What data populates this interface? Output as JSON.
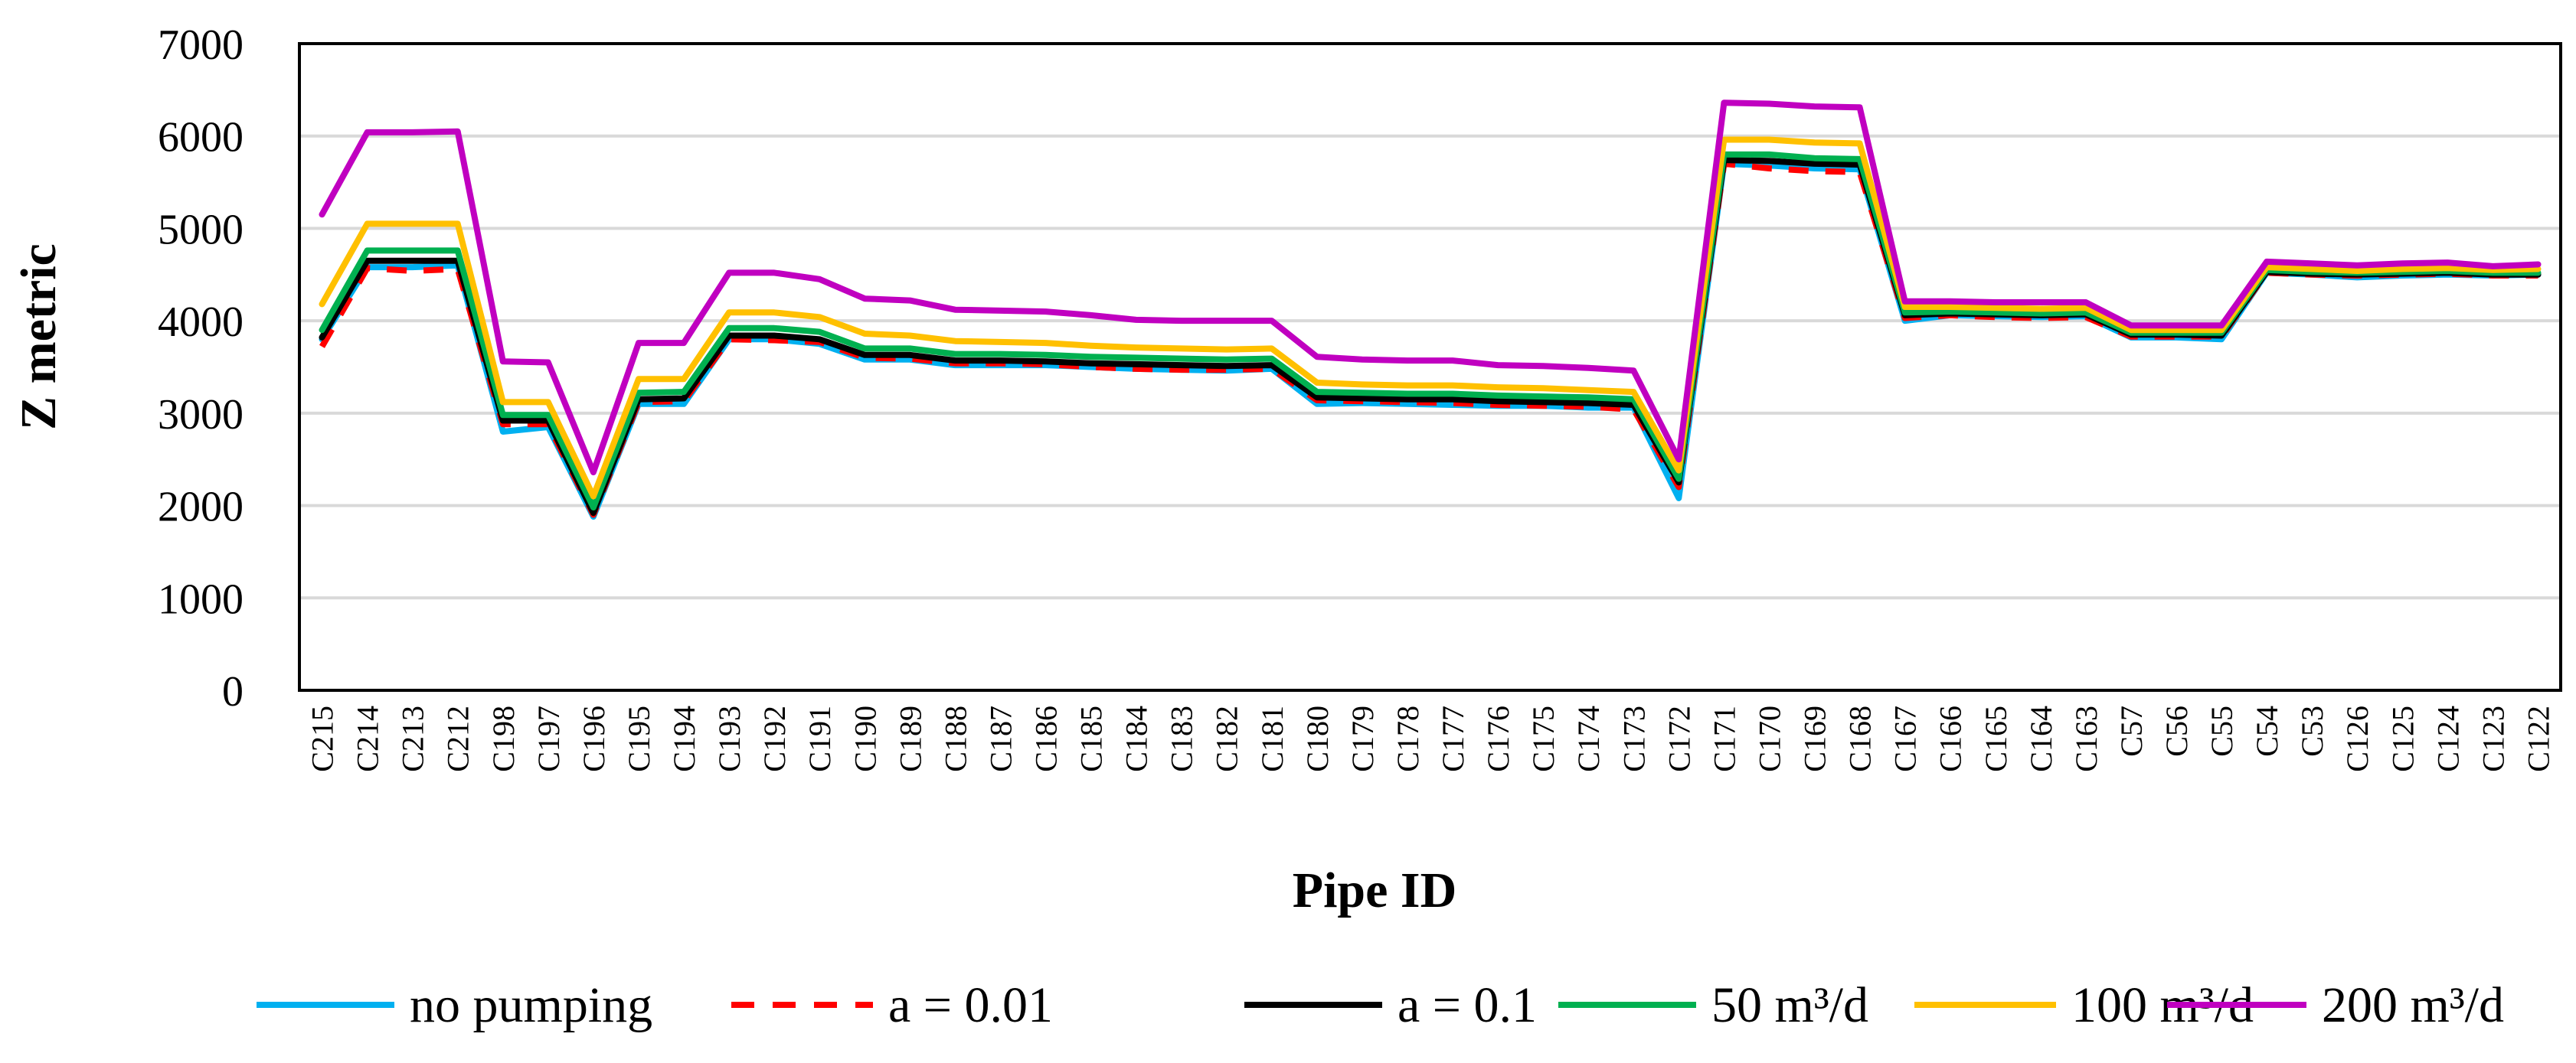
{
  "chart_data": {
    "type": "line",
    "title": "",
    "xlabel": "Pipe ID",
    "ylabel": "Z metric",
    "ylim": [
      0,
      7000
    ],
    "yticks": [
      0,
      1000,
      2000,
      3000,
      4000,
      5000,
      6000,
      7000
    ],
    "grid": true,
    "legend_position": "bottom",
    "categories": [
      "C215",
      "C214",
      "C213",
      "C212",
      "C198",
      "C197",
      "C196",
      "C195",
      "C194",
      "C193",
      "C192",
      "C191",
      "C190",
      "C189",
      "C188",
      "C187",
      "C186",
      "C185",
      "C184",
      "C183",
      "C182",
      "C181",
      "C180",
      "C179",
      "C178",
      "C177",
      "C176",
      "C175",
      "C174",
      "C173",
      "C172",
      "C171",
      "C170",
      "C169",
      "C168",
      "C167",
      "C166",
      "C165",
      "C164",
      "C163",
      "C57",
      "C56",
      "C55",
      "C54",
      "C53",
      "C126",
      "C125",
      "C124",
      "C123",
      "C122"
    ],
    "series": [
      {
        "name": "no pumping",
        "color": "#00B0F0",
        "dash": "solid",
        "values": [
          3800,
          4580,
          4580,
          4600,
          2800,
          2850,
          1880,
          3100,
          3100,
          3800,
          3800,
          3750,
          3580,
          3580,
          3520,
          3520,
          3520,
          3500,
          3480,
          3470,
          3460,
          3480,
          3100,
          3110,
          3100,
          3090,
          3080,
          3080,
          3060,
          3060,
          2080,
          5700,
          5680,
          5650,
          5640,
          4000,
          4060,
          4050,
          4040,
          4050,
          3820,
          3820,
          3800,
          4520,
          4500,
          4470,
          4490,
          4500,
          4490,
          4500
        ]
      },
      {
        "name": "a = 0.01",
        "color": "#FF0000",
        "dash": "dashed",
        "values": [
          3720,
          4570,
          4540,
          4560,
          2880,
          2880,
          1900,
          3120,
          3130,
          3800,
          3790,
          3770,
          3600,
          3590,
          3540,
          3540,
          3530,
          3500,
          3480,
          3470,
          3470,
          3480,
          3140,
          3130,
          3120,
          3110,
          3090,
          3080,
          3070,
          3040,
          2200,
          5700,
          5650,
          5620,
          5610,
          4030,
          4060,
          4040,
          4030,
          4040,
          3830,
          3830,
          3830,
          4520,
          4500,
          4490,
          4500,
          4510,
          4490,
          4490
        ]
      },
      {
        "name": "a = 0.1",
        "color": "#000000",
        "dash": "solid",
        "values": [
          3820,
          4650,
          4650,
          4650,
          2920,
          2920,
          1920,
          3150,
          3160,
          3840,
          3840,
          3800,
          3630,
          3630,
          3570,
          3570,
          3560,
          3540,
          3530,
          3520,
          3510,
          3520,
          3170,
          3160,
          3150,
          3150,
          3130,
          3120,
          3110,
          3090,
          2250,
          5740,
          5730,
          5700,
          5690,
          4060,
          4080,
          4070,
          4060,
          4070,
          3850,
          3850,
          3840,
          4530,
          4510,
          4500,
          4510,
          4520,
          4500,
          4500
        ]
      },
      {
        "name": "50 m³/d",
        "color": "#00B050",
        "dash": "solid",
        "values": [
          3900,
          4760,
          4760,
          4760,
          2980,
          2980,
          1980,
          3220,
          3230,
          3920,
          3920,
          3880,
          3700,
          3700,
          3640,
          3640,
          3630,
          3610,
          3600,
          3590,
          3580,
          3590,
          3230,
          3220,
          3210,
          3210,
          3190,
          3180,
          3170,
          3150,
          2290,
          5800,
          5800,
          5760,
          5750,
          4090,
          4100,
          4090,
          4080,
          4090,
          3870,
          3870,
          3870,
          4550,
          4530,
          4520,
          4530,
          4540,
          4520,
          4520
        ]
      },
      {
        "name": "100 m³/d",
        "color": "#FFC000",
        "dash": "solid",
        "values": [
          4180,
          5050,
          5050,
          5050,
          3120,
          3120,
          2100,
          3370,
          3370,
          4090,
          4090,
          4040,
          3860,
          3840,
          3780,
          3770,
          3760,
          3730,
          3710,
          3700,
          3690,
          3700,
          3330,
          3310,
          3300,
          3300,
          3280,
          3270,
          3250,
          3230,
          2380,
          5960,
          5960,
          5930,
          5920,
          4150,
          4150,
          4140,
          4130,
          4140,
          3900,
          3900,
          3900,
          4580,
          4560,
          4540,
          4560,
          4570,
          4550,
          4560
        ]
      },
      {
        "name": "200 m³/d",
        "color": "#C000C0",
        "dash": "solid",
        "values": [
          5150,
          6040,
          6040,
          6050,
          3560,
          3550,
          2360,
          3760,
          3760,
          4520,
          4520,
          4450,
          4240,
          4220,
          4120,
          4110,
          4100,
          4060,
          4010,
          4000,
          4000,
          4000,
          3610,
          3580,
          3570,
          3570,
          3520,
          3510,
          3490,
          3460,
          2500,
          6360,
          6350,
          6320,
          6310,
          4210,
          4210,
          4200,
          4200,
          4200,
          3950,
          3950,
          3950,
          4640,
          4620,
          4600,
          4620,
          4630,
          4590,
          4610
        ]
      }
    ]
  }
}
